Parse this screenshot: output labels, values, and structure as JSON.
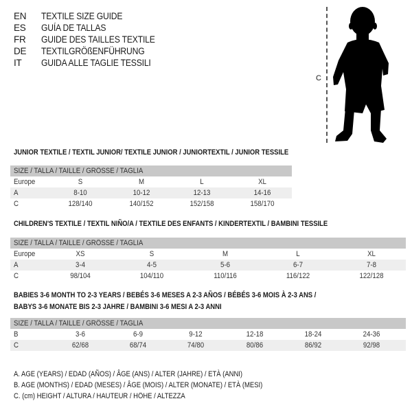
{
  "header": {
    "languages": [
      {
        "code": "EN",
        "title": "TEXTILE SIZE GUIDE"
      },
      {
        "code": "ES",
        "title": "GUÍA DE TALLAS"
      },
      {
        "code": "FR",
        "title": "GUIDE DES TAILLES TEXTILE"
      },
      {
        "code": "DE",
        "title": "TEXTILGRÖßENFÜHRUNG"
      },
      {
        "code": "IT",
        "title": "GUIDA ALLE TAGLIE TESSILI"
      }
    ]
  },
  "figure": {
    "measure_label": "C",
    "icon": "child-silhouette-icon"
  },
  "tables": [
    {
      "title": "JUNIOR TEXTILE / TEXTIL JUNIOR/ TEXTILE JUNIOR / JUNIORTEXTIL / JUNIOR TESSILE",
      "header": "SIZE / TALLA / TAILLE / GRÖSSE / TAGLIA",
      "rows": [
        {
          "label": "Europe",
          "values": [
            "S",
            "M",
            "L",
            "XL"
          ]
        },
        {
          "label": "A",
          "values": [
            "8-10",
            "10-12",
            "12-13",
            "14-16"
          ]
        },
        {
          "label": "C",
          "values": [
            "128/140",
            "140/152",
            "152/158",
            "158/170"
          ]
        }
      ]
    },
    {
      "title": "CHILDREN'S TEXTILE / TEXTIL NIÑO/A / TEXTILE DES ENFANTS / KINDERTEXTIL / BAMBINI TESSILE",
      "header": "SIZE / TALLA / TAILLE / GRÖSSE / TAGLIA",
      "rows": [
        {
          "label": "Europe",
          "values": [
            "XS",
            "S",
            "M",
            "L",
            "XL"
          ]
        },
        {
          "label": "A",
          "values": [
            "3-4",
            "4-5",
            "5-6",
            "6-7",
            "7-8"
          ]
        },
        {
          "label": "C",
          "values": [
            "98/104",
            "104/110",
            "110/116",
            "116/122",
            "122/128"
          ]
        }
      ]
    },
    {
      "title": "BABIES 3-6 MONTH TO 2-3 YEARS / BEBÉS 3-6 MESES A 2-3 AÑOS / BÉBÉS 3-6 MOIS À 2-3 ANS /",
      "title2": "BABYS 3-6 MONATE BIS 2-3 JAHRE / BAMBINI 3-6 MESI A 2-3 ANNI",
      "header": "SIZE / TALLA / TAILLE / GRÖSSE / TAGLIA",
      "rows": [
        {
          "label": "B",
          "values": [
            "3-6",
            "6-9",
            "9-12",
            "12-18",
            "18-24",
            "24-36"
          ]
        },
        {
          "label": "C",
          "values": [
            "62/68",
            "68/74",
            "74/80",
            "80/86",
            "86/92",
            "92/98"
          ]
        }
      ]
    }
  ],
  "legend": [
    "A. AGE (YEARS) / EDAD (AÑOS) / ÂGE (ANS) / ALTER (JAHRE) / ETÀ (ANNI)",
    "B. AGE (MONTHS) / EDAD (MESES) / ÂGE (MOIS) / ALTER (MONATE) / ETÀ (MESI)",
    "C. (cm) HEIGHT / ALTURA / HAUTEUR / HÖHE / ALTEZZA"
  ],
  "colors": {
    "header_row": "#c8c8c8",
    "shaded_row": "#eeeeee"
  }
}
